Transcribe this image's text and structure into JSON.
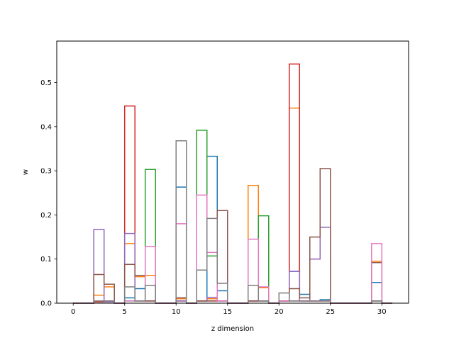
{
  "chart_data": {
    "type": "histogram-step",
    "title": "",
    "xlabel": "z dimension",
    "ylabel": "w",
    "xlim": [
      -1.6,
      32.6
    ],
    "ylim": [
      0,
      0.594
    ],
    "xticks": [
      0,
      5,
      10,
      15,
      20,
      25,
      30
    ],
    "yticks": [
      0.0,
      0.1,
      0.2,
      0.3,
      0.4,
      0.5
    ],
    "xtick_labels": [
      "0",
      "5",
      "10",
      "15",
      "20",
      "25",
      "30"
    ],
    "ytick_labels": [
      "0.0",
      "0.1",
      "0.2",
      "0.3",
      "0.4",
      "0.5"
    ],
    "bin_edges": [
      0,
      1,
      2,
      3,
      4,
      5,
      6,
      7,
      8,
      9,
      10,
      11,
      12,
      13,
      14,
      15,
      16,
      17,
      18,
      19,
      20,
      21,
      22,
      23,
      24,
      25,
      26,
      27,
      28,
      29,
      30,
      31
    ],
    "grid": false,
    "legend": "none",
    "series": [
      {
        "color": "#1f77b4",
        "values": [
          0,
          0,
          0.003,
          0.005,
          0,
          0.012,
          0.033,
          0.063,
          0,
          0,
          0.263,
          0,
          0.005,
          0.333,
          0.028,
          0,
          0,
          0.005,
          0.005,
          0,
          0.005,
          0.072,
          0.02,
          0.005,
          0.008,
          0,
          0,
          0,
          0,
          0.047,
          0
        ]
      },
      {
        "color": "#ff7f0e",
        "values": [
          0,
          0,
          0.018,
          0.037,
          0,
          0.135,
          0.06,
          0.063,
          0,
          0,
          0.01,
          0,
          0.005,
          0.01,
          0.005,
          0,
          0,
          0.267,
          0.035,
          0,
          0.005,
          0.442,
          0.005,
          0.005,
          0.005,
          0,
          0,
          0,
          0,
          0.095,
          0
        ]
      },
      {
        "color": "#2ca02c",
        "values": [
          0,
          0,
          0.003,
          0.003,
          0,
          0.005,
          0.005,
          0.303,
          0,
          0,
          0.005,
          0,
          0.392,
          0.107,
          0.005,
          0,
          0,
          0.005,
          0.198,
          0,
          0.005,
          0.005,
          0.005,
          0.005,
          0.005,
          0,
          0,
          0,
          0,
          0.005,
          0
        ]
      },
      {
        "color": "#d62728",
        "values": [
          0,
          0,
          0.003,
          0.003,
          0,
          0.447,
          0.005,
          0.005,
          0,
          0,
          0.005,
          0,
          0.005,
          0.005,
          0.005,
          0,
          0,
          0.005,
          0.005,
          0,
          0.005,
          0.542,
          0.005,
          0.005,
          0.005,
          0,
          0,
          0,
          0,
          0.005,
          0
        ]
      },
      {
        "color": "#9467bd",
        "values": [
          0,
          0,
          0.167,
          0.003,
          0,
          0.158,
          0.005,
          0.005,
          0,
          0,
          0.005,
          0,
          0.005,
          0.013,
          0.005,
          0,
          0,
          0.005,
          0.005,
          0,
          0.005,
          0.072,
          0.005,
          0.1,
          0.172,
          0,
          0,
          0,
          0,
          0.005,
          0
        ]
      },
      {
        "color": "#8c564b",
        "values": [
          0,
          0,
          0.065,
          0.043,
          0,
          0.088,
          0.063,
          0.005,
          0,
          0,
          0.012,
          0,
          0.005,
          0.005,
          0.21,
          0,
          0,
          0.005,
          0.005,
          0,
          0.005,
          0.033,
          0.012,
          0.15,
          0.305,
          0,
          0,
          0,
          0,
          0.092,
          0
        ]
      },
      {
        "color": "#e377c2",
        "values": [
          0,
          0,
          0.005,
          0.005,
          0,
          0.005,
          0.005,
          0.128,
          0,
          0,
          0.18,
          0,
          0.245,
          0.115,
          0.005,
          0,
          0,
          0.145,
          0.037,
          0,
          0.005,
          0.005,
          0.005,
          0.005,
          0.005,
          0,
          0,
          0,
          0,
          0.135,
          0
        ]
      },
      {
        "color": "#7f7f7f",
        "values": [
          0,
          0,
          0.005,
          0.005,
          0,
          0.037,
          0.005,
          0.04,
          0,
          0,
          0.368,
          0,
          0.075,
          0.192,
          0.045,
          0,
          0,
          0.04,
          0.005,
          0,
          0.023,
          0.005,
          0.005,
          0.005,
          0.005,
          0,
          0,
          0,
          0,
          0.005,
          0
        ]
      }
    ]
  }
}
